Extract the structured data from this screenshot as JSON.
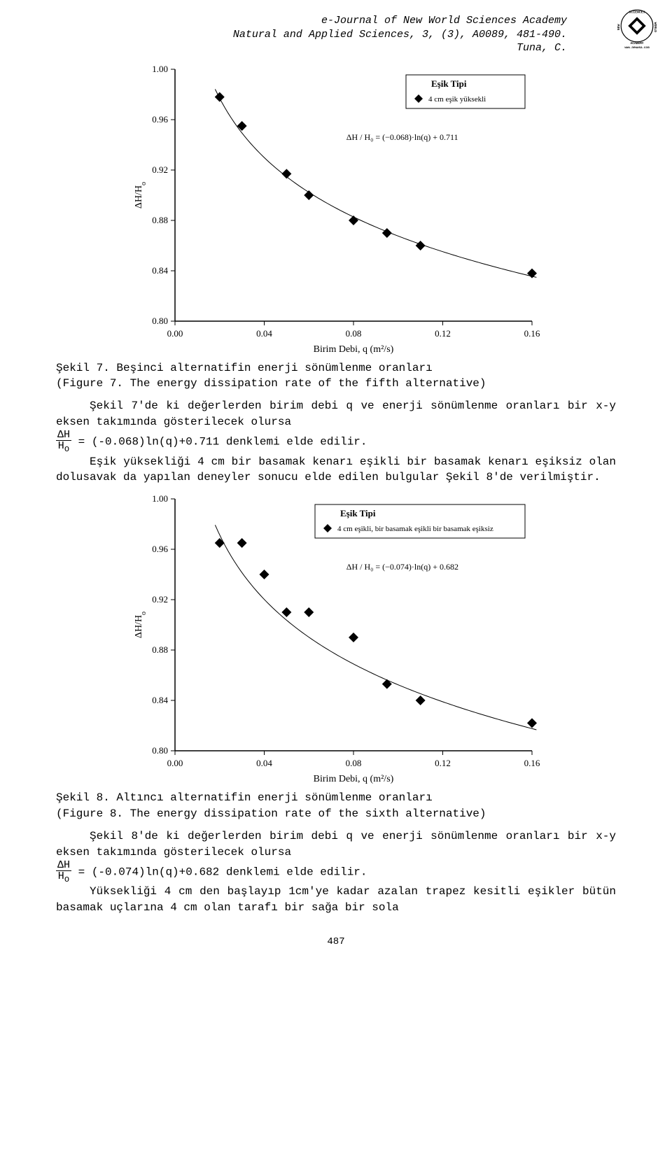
{
  "header": {
    "line1": "e-Journal of New World Sciences Academy",
    "line2": "Natural and Applied Sciences, 3, (3), A0089, 481-490.",
    "line3": "Tuna, C."
  },
  "logo": {
    "top": "SCIENCES",
    "left": "NEW",
    "right": "WORLD",
    "bottom": "ACADEMY",
    "url": "www.newwsa.com"
  },
  "chart7": {
    "type": "scatter",
    "xlabel": "Birim Debi, q (m²/s)",
    "ylabel": "ΔH/H",
    "ylabel_sub": "o",
    "legend_title": "Eşik Tipi",
    "legend_item": "4 cm eşik yüksekli",
    "equation": "ΔH / H₀ = (−0.068)·ln(q) + 0.711",
    "xlim": [
      0.0,
      0.16
    ],
    "ylim": [
      0.8,
      1.0
    ],
    "xticks": [
      0.0,
      0.04,
      0.08,
      0.12,
      0.16
    ],
    "yticks": [
      0.8,
      0.84,
      0.88,
      0.92,
      0.96,
      1.0
    ],
    "points": [
      [
        0.02,
        0.978
      ],
      [
        0.03,
        0.955
      ],
      [
        0.05,
        0.917
      ],
      [
        0.06,
        0.9
      ],
      [
        0.08,
        0.88
      ],
      [
        0.095,
        0.87
      ],
      [
        0.11,
        0.86
      ],
      [
        0.16,
        0.838
      ]
    ],
    "marker_size": 7,
    "marker_color": "#000000",
    "axis_color": "#000000",
    "grid_color": "#000000",
    "background_color": "#ffffff",
    "tick_fontsize": 13,
    "label_fontsize": 14,
    "legend_fontsize": 12
  },
  "caption7": {
    "line1": "Şekil 7. Beşinci alternatifin enerji sönümlenme oranları",
    "line2": "(Figure 7. The energy dissipation rate of the fifth alternative)"
  },
  "para7": {
    "pre": "Şekil 7'de ki değerlerden birim debi q ve enerji sönümlenme oranları bir x-y eksen takımında gösterilecek olursa",
    "eq_num": "ΔH",
    "eq_den": "H",
    "eq_den_sub": "o",
    "eq_rhs": "= (-0.068)ln(q)+0.711 denklemi elde edilir.",
    "para2": "Eşik yüksekliği 4 cm bir basamak kenarı eşikli bir basamak kenarı eşiksiz olan  dolusavak da yapılan deneyler sonucu elde edilen bulgular Şekil 8'de verilmiştir."
  },
  "chart8": {
    "type": "scatter",
    "xlabel": "Birim Debi, q (m²/s)",
    "ylabel": "ΔH/H",
    "ylabel_sub": "o",
    "legend_title": "Eşik Tipi",
    "legend_item": "4 cm eşikli, bir basamak eşikli bir basamak eşiksiz",
    "equation": "ΔH / H₀ = (−0.074)·ln(q) + 0.682",
    "xlim": [
      0.0,
      0.16
    ],
    "ylim": [
      0.8,
      1.0
    ],
    "xticks": [
      0.0,
      0.04,
      0.08,
      0.12,
      0.16
    ],
    "yticks": [
      0.8,
      0.84,
      0.88,
      0.92,
      0.96,
      1.0
    ],
    "points": [
      [
        0.02,
        0.965
      ],
      [
        0.03,
        0.965
      ],
      [
        0.04,
        0.94
      ],
      [
        0.05,
        0.91
      ],
      [
        0.06,
        0.91
      ],
      [
        0.08,
        0.89
      ],
      [
        0.095,
        0.853
      ],
      [
        0.11,
        0.84
      ],
      [
        0.16,
        0.822
      ]
    ],
    "marker_size": 7,
    "marker_color": "#000000",
    "axis_color": "#000000",
    "grid_color": "#000000",
    "background_color": "#ffffff",
    "tick_fontsize": 13,
    "label_fontsize": 14,
    "legend_fontsize": 12
  },
  "caption8": {
    "line1": "Şekil 8. Altıncı alternatifin enerji sönümlenme oranları",
    "line2": "(Figure 8. The energy dissipation rate of the sixth alternative)"
  },
  "para8": {
    "pre": "Şekil 8'de ki değerlerden birim debi q ve enerji sönümlenme oranları bir x-y eksen takımında gösterilecek olursa",
    "eq_num": "ΔH",
    "eq_den": "H",
    "eq_den_sub": "o",
    "eq_rhs": "= (-0.074)ln(q)+0.682 denklemi elde edilir.",
    "para2": "Yüksekliği 4 cm den başlayıp 1cm'ye kadar azalan trapez kesitli eşikler bütün basamak uçlarına 4 cm olan tarafı bir sağa bir sola"
  },
  "page_number": "487"
}
